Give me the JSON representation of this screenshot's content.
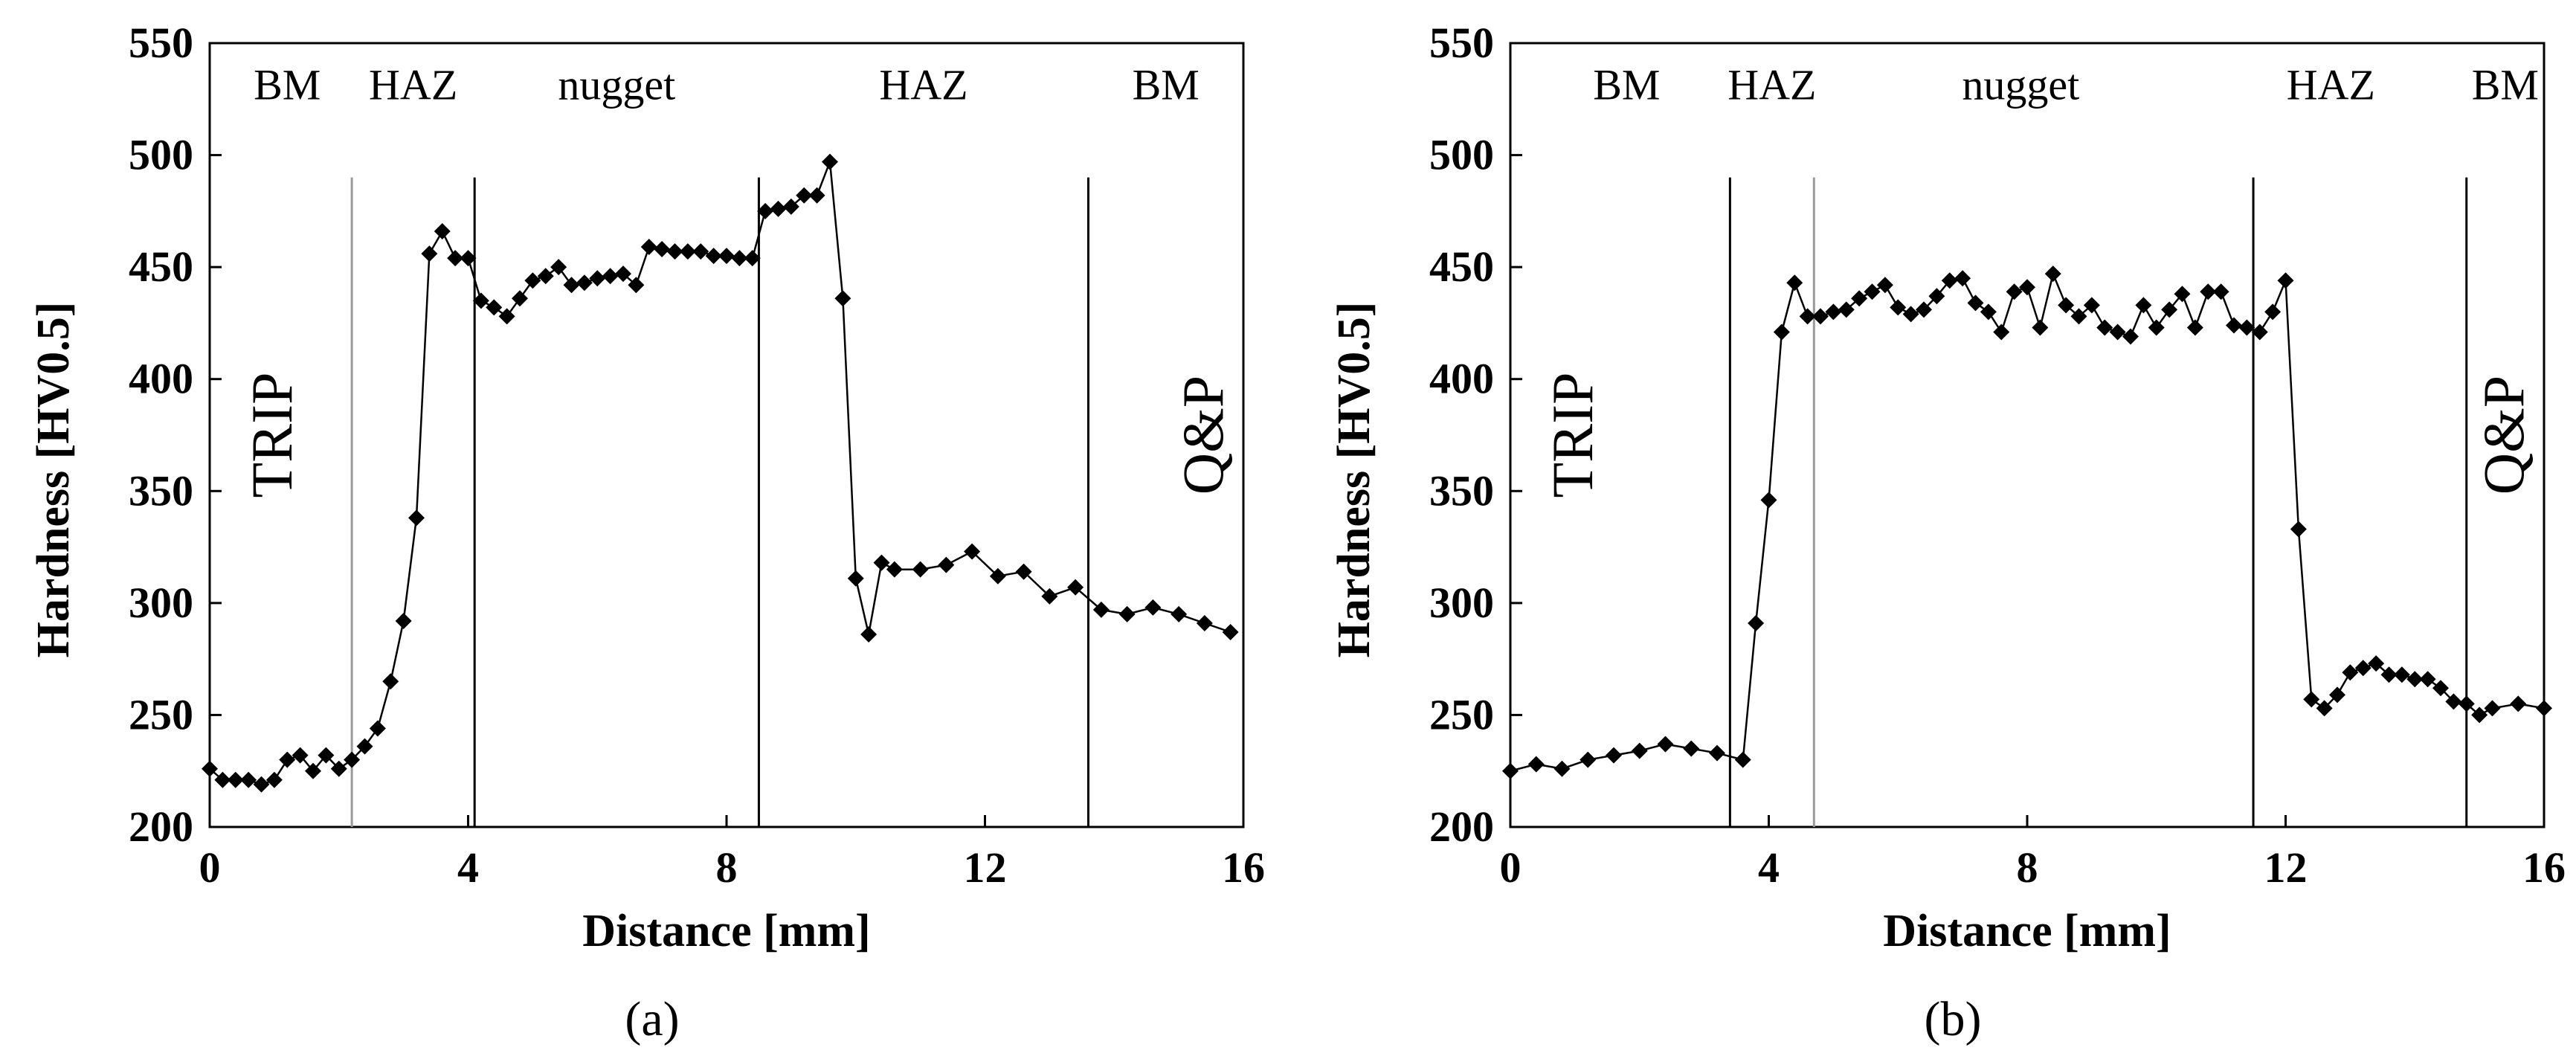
{
  "chart_data": [
    {
      "type": "line",
      "panel_label": "(a)",
      "xlabel": "Distance  [mm]",
      "ylabel": "Hardness  [HV0.5]",
      "xlim": [
        0,
        16
      ],
      "ylim": [
        200,
        550
      ],
      "xticks": [
        "0",
        "4",
        "8",
        "12",
        "16"
      ],
      "yticks": [
        "200",
        "250",
        "300",
        "350",
        "400",
        "450",
        "500",
        "550"
      ],
      "left_material": "TRIP",
      "right_material": "Q&P",
      "region_boundaries": [
        {
          "x": 2.2,
          "style": "gray"
        },
        {
          "x": 4.1,
          "style": "black"
        },
        {
          "x": 8.5,
          "style": "black"
        },
        {
          "x": 13.6,
          "style": "black"
        }
      ],
      "regions": [
        {
          "label": "BM",
          "x": 1.2
        },
        {
          "label": "HAZ",
          "x": 3.15
        },
        {
          "label": "nugget",
          "x": 6.3
        },
        {
          "label": "HAZ",
          "x": 11.05
        },
        {
          "label": "BM",
          "x": 14.8
        }
      ],
      "series": [
        {
          "name": "hardness",
          "x": [
            0,
            0.2,
            0.4,
            0.6,
            0.8,
            1.0,
            1.2,
            1.4,
            1.6,
            1.8,
            2.0,
            2.2,
            2.4,
            2.6,
            2.8,
            3.0,
            3.2,
            3.4,
            3.6,
            3.8,
            4.0,
            4.2,
            4.4,
            4.6,
            4.8,
            5.0,
            5.2,
            5.4,
            5.6,
            5.8,
            6.0,
            6.2,
            6.4,
            6.6,
            6.8,
            7.0,
            7.2,
            7.4,
            7.6,
            7.8,
            8.0,
            8.2,
            8.4,
            8.6,
            8.8,
            9.0,
            9.2,
            9.4,
            9.6,
            9.8,
            10.0,
            10.2,
            10.4,
            10.6,
            11.0,
            11.4,
            11.8,
            12.2,
            12.6,
            13.0,
            13.4,
            13.8,
            14.2,
            14.6,
            15.0,
            15.4,
            15.8
          ],
          "y": [
            226,
            221,
            221,
            221,
            219,
            221,
            230,
            232,
            225,
            232,
            226,
            230,
            236,
            244,
            265,
            292,
            338,
            456,
            466,
            454,
            454,
            435,
            432,
            428,
            436,
            444,
            446,
            450,
            442,
            443,
            445,
            446,
            447,
            442,
            459,
            458,
            457,
            457,
            457,
            455,
            455,
            454,
            454,
            475,
            476,
            477,
            482,
            482,
            497,
            436,
            311,
            286,
            318,
            315,
            315,
            317,
            323,
            312,
            314,
            303,
            307,
            297,
            295,
            298,
            295,
            291,
            287
          ]
        }
      ]
    },
    {
      "type": "line",
      "panel_label": "(b)",
      "xlabel": "Distance  [mm]",
      "ylabel": "Hardness  [HV0.5]",
      "xlim": [
        0,
        16
      ],
      "ylim": [
        200,
        550
      ],
      "xticks": [
        "0",
        "4",
        "8",
        "12",
        "16"
      ],
      "yticks": [
        "200",
        "250",
        "300",
        "350",
        "400",
        "450",
        "500",
        "550"
      ],
      "left_material": "TRIP",
      "right_material": "Q&P",
      "region_boundaries": [
        {
          "x": 3.4,
          "style": "black"
        },
        {
          "x": 4.7,
          "style": "gray"
        },
        {
          "x": 11.5,
          "style": "black"
        },
        {
          "x": 14.8,
          "style": "black"
        }
      ],
      "regions": [
        {
          "label": "BM",
          "x": 1.8
        },
        {
          "label": "HAZ",
          "x": 4.05
        },
        {
          "label": "nugget",
          "x": 7.9
        },
        {
          "label": "HAZ",
          "x": 12.7
        },
        {
          "label": "BM",
          "x": 15.4
        }
      ],
      "series": [
        {
          "name": "hardness",
          "x": [
            0,
            0.4,
            0.8,
            1.2,
            1.6,
            2.0,
            2.4,
            2.8,
            3.2,
            3.6,
            3.8,
            4.0,
            4.2,
            4.4,
            4.6,
            4.8,
            5.0,
            5.2,
            5.4,
            5.6,
            5.8,
            6.0,
            6.2,
            6.4,
            6.6,
            6.8,
            7.0,
            7.2,
            7.4,
            7.6,
            7.8,
            8.0,
            8.2,
            8.4,
            8.6,
            8.8,
            9.0,
            9.2,
            9.4,
            9.6,
            9.8,
            10.0,
            10.2,
            10.4,
            10.6,
            10.8,
            11.0,
            11.2,
            11.4,
            11.6,
            11.8,
            12.0,
            12.2,
            12.4,
            12.6,
            12.8,
            13.0,
            13.2,
            13.4,
            13.6,
            13.8,
            14.0,
            14.2,
            14.4,
            14.6,
            14.8,
            15.0,
            15.2,
            15.6,
            16.0
          ],
          "y": [
            225,
            228,
            226,
            230,
            232,
            234,
            237,
            235,
            233,
            230,
            291,
            346,
            421,
            443,
            428,
            428,
            430,
            431,
            436,
            439,
            442,
            432,
            429,
            431,
            437,
            444,
            445,
            434,
            430,
            421,
            439,
            441,
            423,
            447,
            433,
            428,
            433,
            423,
            421,
            419,
            433,
            423,
            431,
            438,
            423,
            439,
            439,
            424,
            423,
            421,
            430,
            444,
            333,
            257,
            253,
            259,
            269,
            271,
            273,
            268,
            268,
            266,
            266,
            262,
            256,
            255,
            250,
            253,
            255,
            253
          ]
        }
      ]
    }
  ]
}
